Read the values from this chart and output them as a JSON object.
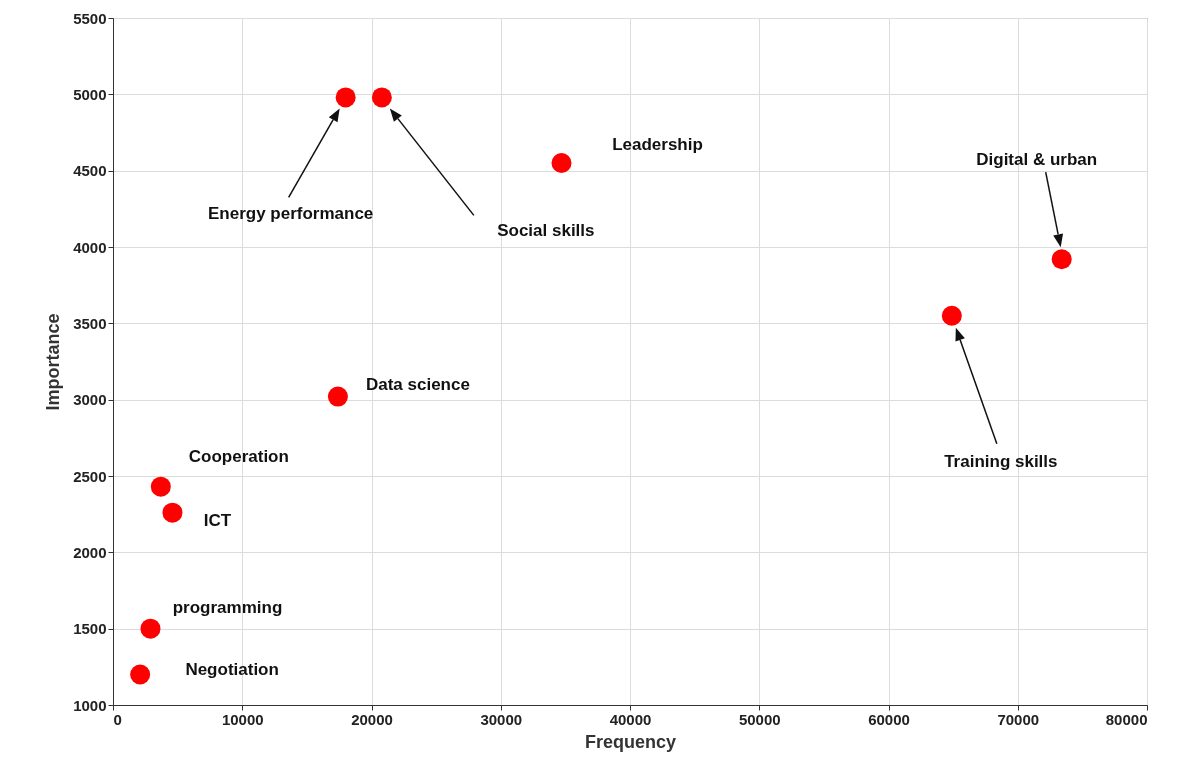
{
  "chart_data": {
    "type": "scatter",
    "xlabel": "Frequency",
    "ylabel": "Importance",
    "x": [
      18000,
      20800,
      34700,
      73400,
      64900,
      17400,
      3700,
      4600,
      2900,
      2100
    ],
    "values": [
      4980,
      4980,
      4550,
      3920,
      3550,
      3020,
      2430,
      2260,
      1500,
      1200
    ],
    "color": "#ff0000",
    "marker": "circle",
    "grid": true,
    "xlim": [
      0,
      80000
    ],
    "xticks": [
      0,
      10000,
      20000,
      30000,
      40000,
      50000,
      60000,
      70000,
      80000
    ],
    "ylim": [
      1000,
      5500
    ],
    "yticks": [
      1000,
      1500,
      2000,
      2500,
      3000,
      3500,
      4000,
      4500,
      5000,
      5500
    ],
    "annotations": [
      "Energy performance",
      "Social skills",
      {
        "text": "Leadership",
        "x": 34700,
        "y": 4550
      },
      "Digital & urban",
      "Training skills",
      {
        "text": "Data science",
        "x": 17400,
        "y": 3020
      },
      {
        "text": "Cooperation",
        "x": 3700,
        "y": 2430
      },
      {
        "text": "ICT",
        "x": 4600,
        "y": 2260
      },
      {
        "text": "programming",
        "x": 2900,
        "y": 1500
      },
      {
        "text": "Negotiation",
        "x": 2100,
        "y": 1200
      }
    ]
  }
}
